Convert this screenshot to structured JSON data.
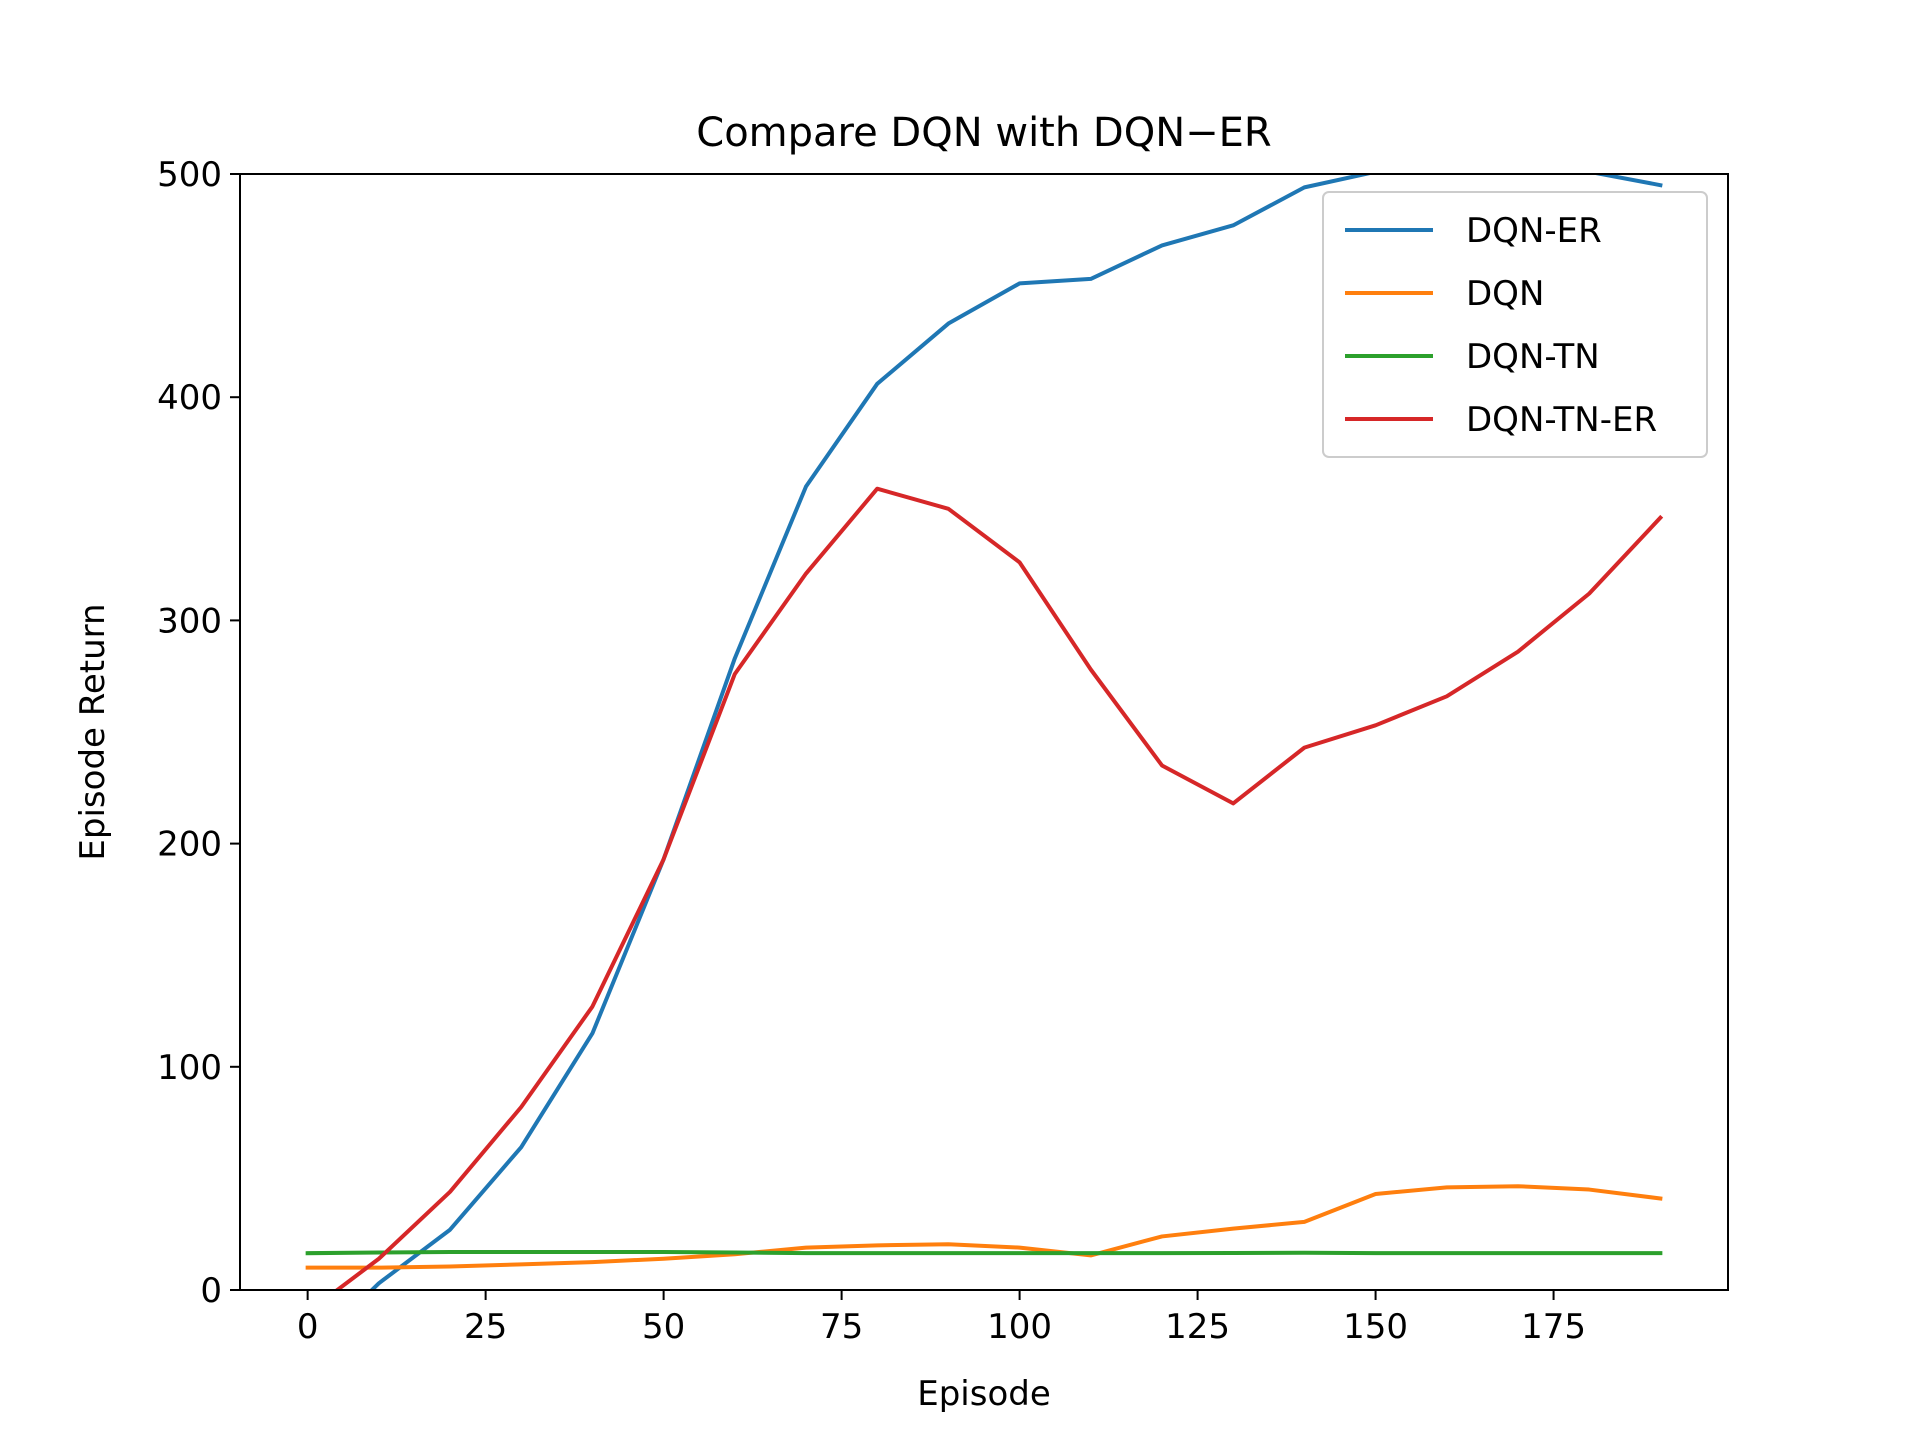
{
  "chart_data": {
    "type": "line",
    "title": "Compare DQN with DQN−ER",
    "xlabel": "Episode",
    "ylabel": "Episode Return",
    "xlim": [
      -9.5,
      199.5
    ],
    "ylim": [
      0,
      500
    ],
    "xticks": [
      0,
      25,
      50,
      75,
      100,
      125,
      150,
      175
    ],
    "xtick_labels": [
      "0",
      "25",
      "50",
      "75",
      "100",
      "125",
      "150",
      "175"
    ],
    "yticks": [
      0,
      100,
      200,
      300,
      400,
      500
    ],
    "ytick_labels": [
      "0",
      "100",
      "200",
      "300",
      "400",
      "500"
    ],
    "grid": false,
    "legend_position": "top-right",
    "x": [
      0,
      10,
      20,
      30,
      40,
      50,
      60,
      70,
      80,
      90,
      100,
      110,
      120,
      130,
      140,
      150,
      160,
      170,
      180,
      190
    ],
    "series": [
      {
        "name": "DQN-ER",
        "color": "#1f77b4",
        "values": [
          -28,
          3,
          27,
          64,
          115,
          193,
          283,
          360,
          406,
          433,
          451,
          453,
          468,
          477,
          494,
          501,
          503,
          505,
          501,
          495
        ]
      },
      {
        "name": "DQN",
        "color": "#ff7f0e",
        "values": [
          10,
          10,
          10.5,
          11.5,
          12.5,
          14,
          16,
          19,
          20,
          20.5,
          19,
          15.5,
          24,
          27.5,
          30.5,
          43,
          46,
          46.5,
          45,
          41
        ]
      },
      {
        "name": "DQN-TN",
        "color": "#2ca02c",
        "values": [
          16.5,
          16.8,
          17,
          17,
          17,
          17,
          16.8,
          16.5,
          16.5,
          16.5,
          16.5,
          16.5,
          16.5,
          16.6,
          16.7,
          16.5,
          16.5,
          16.5,
          16.5,
          16.5
        ]
      },
      {
        "name": "DQN-TN-ER",
        "color": "#d62728",
        "values": [
          -10,
          14,
          44,
          82,
          127,
          193,
          276,
          321,
          359,
          350,
          326,
          278,
          235,
          218,
          243,
          253,
          266,
          286,
          312,
          346
        ]
      }
    ]
  }
}
